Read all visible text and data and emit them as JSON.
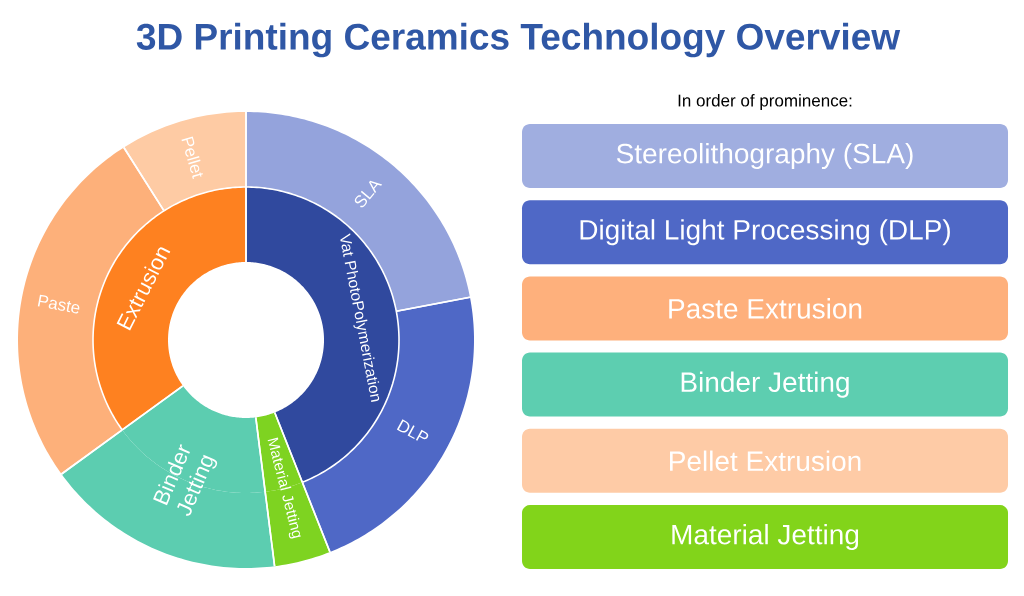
{
  "chart_data": [
    {
      "type": "donut",
      "title": "3D Printing Ceramics Technology Overview",
      "categories": [
        "Vat PhotoPolymerization",
        "Material Jetting",
        "Binder Jetting",
        "Extrusion"
      ],
      "values": [
        44,
        4,
        17,
        35
      ],
      "colors": [
        "#30499e",
        "#7ed321",
        "#5ccdb0",
        "#fe8120"
      ]
    },
    {
      "type": "donut",
      "categories": [
        "SLA",
        "DLP",
        null,
        null,
        "Paste",
        "Pellet"
      ],
      "values": [
        22,
        22,
        4,
        17,
        26,
        9
      ],
      "colors": [
        "#94a3dc",
        "#4f68c6",
        "#7ed321",
        "#5ccdb0",
        "#fdb07a",
        "#fecba4"
      ]
    },
    {
      "type": "other",
      "title": "In order of prominence:",
      "categories": [
        "Stereolithography (SLA)",
        "Digital Light Processing (DLP)",
        "Paste Extrusion",
        "Binder Jetting",
        "Pellet Extrusion",
        "Material Jetting"
      ],
      "colors": [
        "#a0aee0",
        "#4f68c6",
        "#feb07c",
        "#5dceb0",
        "#fecba6",
        "#82d41a"
      ]
    }
  ]
}
